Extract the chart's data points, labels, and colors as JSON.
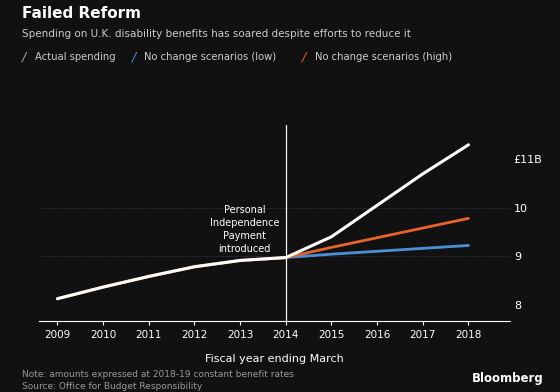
{
  "title": "Failed Reform",
  "subtitle": "Spending on U.K. disability benefits has soared despite efforts to reduce it",
  "xlabel": "Fiscal year ending March",
  "note": "Note: amounts expressed at 2018-19 constant benefit rates",
  "source": "Source: Office for Budget Responsibility",
  "bloomberg": "Bloomberg",
  "background_color": "#111111",
  "text_color": "#ffffff",
  "annotation_text": "Personal\nIndependence\nPayment\nintroduced",
  "vline_x": 2014,
  "yticks": [
    8,
    9,
    10,
    11
  ],
  "ytick_labels": [
    "8",
    "9",
    "10",
    "£11B"
  ],
  "ylim": [
    7.65,
    11.7
  ],
  "xlim": [
    2008.6,
    2018.9
  ],
  "xticks": [
    2009,
    2010,
    2011,
    2012,
    2013,
    2014,
    2015,
    2016,
    2017,
    2018
  ],
  "actual_years": [
    2009,
    2010,
    2011,
    2012,
    2013,
    2014,
    2015,
    2016,
    2017,
    2018
  ],
  "actual_values": [
    8.12,
    8.36,
    8.58,
    8.78,
    8.91,
    8.97,
    9.4,
    10.05,
    10.7,
    11.3
  ],
  "actual_color": "#ffffff",
  "actual_lw": 2.2,
  "low_years": [
    2014,
    2015,
    2016,
    2017,
    2018
  ],
  "low_values": [
    8.97,
    9.04,
    9.1,
    9.16,
    9.22
  ],
  "low_color": "#4a90d9",
  "low_lw": 2.0,
  "high_years": [
    2014,
    2015,
    2016,
    2017,
    2018
  ],
  "high_values": [
    8.97,
    9.18,
    9.38,
    9.58,
    9.78
  ],
  "high_color": "#e8632a",
  "high_lw": 2.0,
  "pre_actual_years": [
    2009,
    2010,
    2011,
    2012,
    2013,
    2014
  ],
  "pre_actual_values": [
    8.12,
    8.36,
    8.58,
    8.78,
    8.91,
    8.97
  ],
  "pre_actual_color": "#d4724a",
  "pre_actual_lw": 2.2,
  "legend_items": [
    {
      "label": "Actual spending",
      "color": "#ffffff",
      "ls": "-"
    },
    {
      "label": "No change scenarios (low)",
      "color": "#4a90d9",
      "ls": "-"
    },
    {
      "label": "No change scenarios (high)",
      "color": "#e8632a",
      "ls": "-"
    }
  ]
}
